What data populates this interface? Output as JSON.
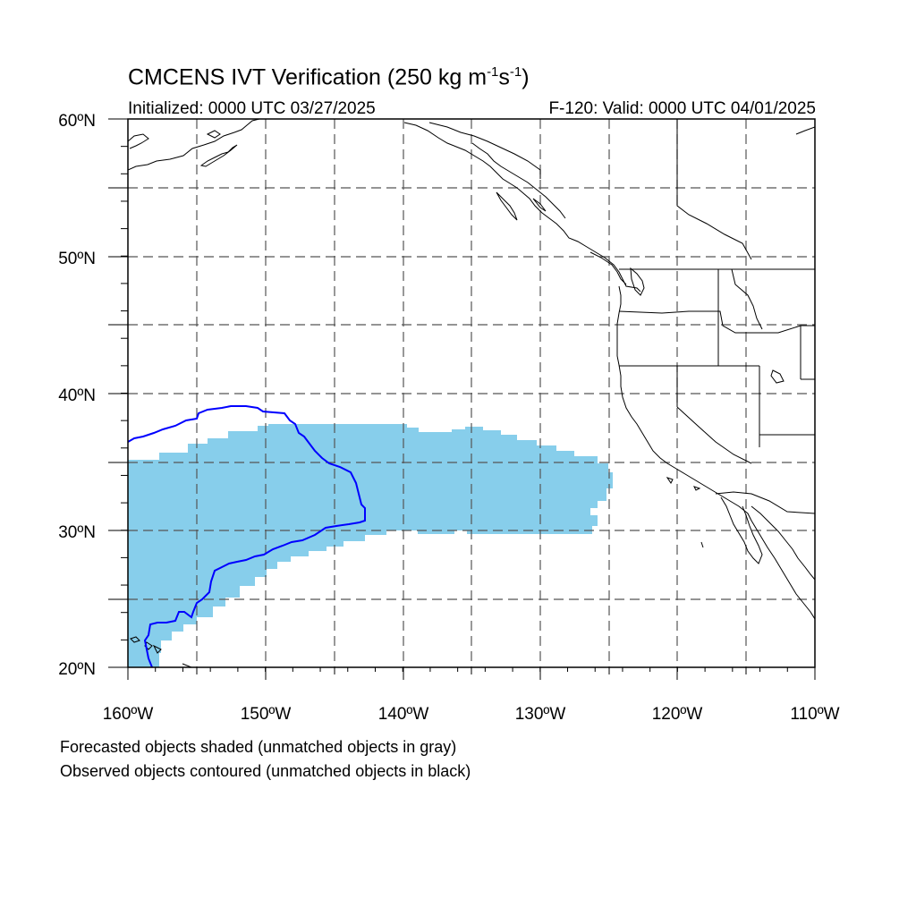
{
  "title": {
    "main": "CMCENS IVT Verification (250 kg m",
    "sup1": "-1",
    "mid": "s",
    "sup2": "-1",
    "end": ")"
  },
  "initialized": "Initialized: 0000 UTC 03/27/2025",
  "valid": "F-120: Valid: 0000 UTC 04/01/2025",
  "notes": [
    "Forecasted objects shaded (unmatched objects in gray)",
    "Observed objects contoured (unmatched objects in black)"
  ],
  "lat_labels": [
    "60ºN",
    "50ºN",
    "40ºN",
    "30ºN",
    "20ºN"
  ],
  "lon_labels": [
    "160ºW",
    "150ºW",
    "140ºW",
    "130ºW",
    "120ºW",
    "110ºW"
  ],
  "colors": {
    "forecast_fill": "#87ceeb",
    "observed_contour": "#0000ff",
    "coastline": "#000000",
    "grid": "#555555"
  }
}
